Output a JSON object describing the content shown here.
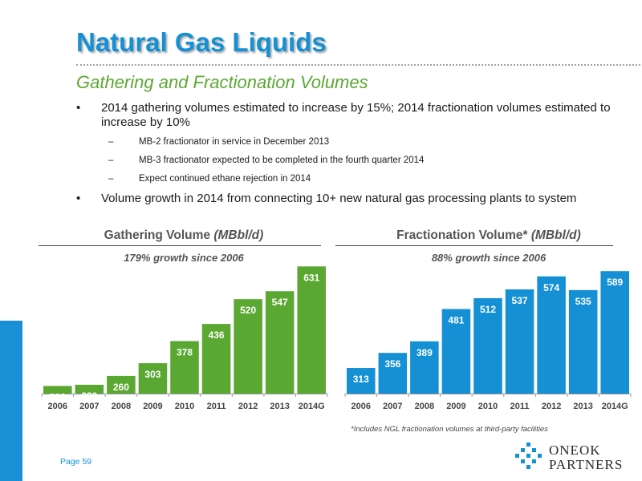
{
  "title": "Natural Gas Liquids",
  "subtitle": "Gathering and Fractionation Volumes",
  "bullets": [
    {
      "marker": "•",
      "text": "2014 gathering volumes estimated to increase by 15%; 2014 fractionation volumes estimated to increase by 10%"
    },
    {
      "marker": "–",
      "text": "MB-2 fractionator in service in December 2013"
    },
    {
      "marker": "–",
      "text": "MB-3 fractionator expected to be completed in the fourth quarter 2014"
    },
    {
      "marker": "–",
      "text": "Expect continued ethane rejection in 2014"
    },
    {
      "marker": "•",
      "text": "Volume growth in 2014 from connecting 10+ new natural gas processing plants to system"
    }
  ],
  "chart_data": [
    {
      "type": "bar",
      "title": "Gathering Volume",
      "title_unit": "(MBbl/d)",
      "annotation": "179% growth since 2006",
      "categories": [
        "2006",
        "2007",
        "2008",
        "2009",
        "2010",
        "2011",
        "2012",
        "2013",
        "2014G"
      ],
      "values": [
        226,
        230,
        260,
        303,
        378,
        436,
        520,
        547,
        631
      ],
      "color": "#5aa832",
      "ylim": [
        200,
        640
      ],
      "grid": false
    },
    {
      "type": "bar",
      "title": "Fractionation Volume*",
      "title_unit": "(MBbl/d)",
      "annotation": "88% growth since 2006",
      "categories": [
        "2006",
        "2007",
        "2008",
        "2009",
        "2010",
        "2011",
        "2012",
        "2013",
        "2014G"
      ],
      "values": [
        313,
        356,
        389,
        481,
        512,
        537,
        574,
        535,
        589
      ],
      "color": "#1590d4",
      "ylim": [
        240,
        610
      ],
      "grid": false
    }
  ],
  "footnote": "*Includes NGL fractionation volumes at third-party facilities",
  "page_label": "Page 59",
  "logo": {
    "line1": "ONEOK",
    "line2": "PARTNERS"
  },
  "colors": {
    "accent_blue": "#1590d4",
    "accent_green": "#5aa832"
  }
}
